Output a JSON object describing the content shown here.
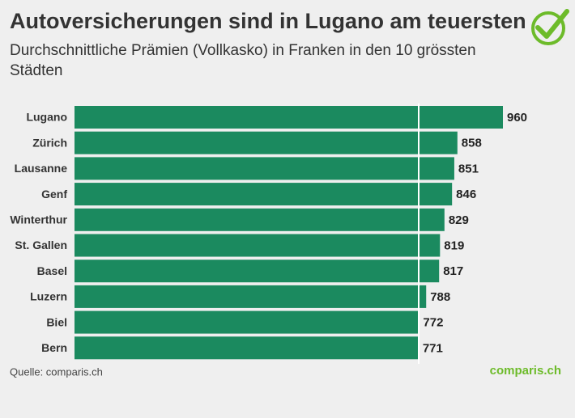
{
  "chart_data": {
    "type": "bar",
    "orientation": "horizontal",
    "title": "Autoversicherungen sind in Lugano am teuersten",
    "subtitle": "Durchschnittliche Prämien (Vollkasko) in Franken in den 10 grössten Städten",
    "categories": [
      "Lugano",
      "Zürich",
      "Lausanne",
      "Genf",
      "Winterthur",
      "St. Gallen",
      "Basel",
      "Luzern",
      "Biel",
      "Bern"
    ],
    "values": [
      960,
      858,
      851,
      846,
      829,
      819,
      817,
      788,
      772,
      771
    ],
    "color": "#1b8a5f",
    "xlim": [
      0,
      960
    ],
    "source": "Quelle: comparis.ch",
    "logo": "comparis.ch"
  }
}
